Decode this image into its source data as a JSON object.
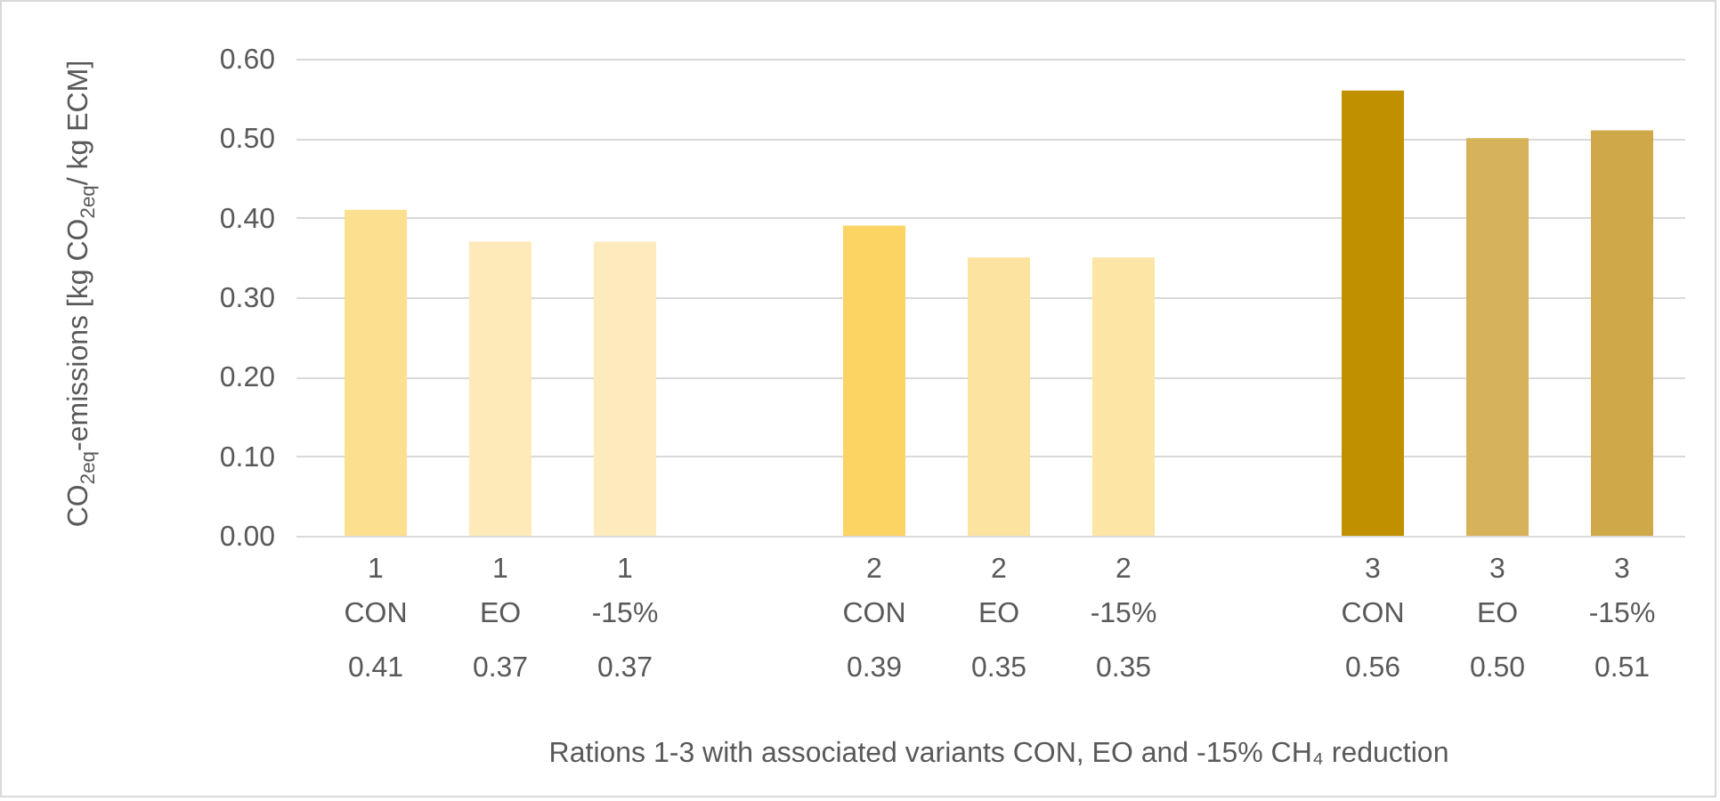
{
  "chart_data": {
    "type": "bar",
    "xlabel": "Rations 1-3 with associated variants CON, EO and -15% CH₄ reduction",
    "ylabel": "CO$_{2eq}$-emissions [kg CO$_{2eq}$/ kg ECM]",
    "categories": [
      "1\nCON",
      "1\nEO",
      "1\n-15%",
      null,
      "2\nCON",
      "2\nEO",
      "2\n-15%",
      null,
      "3\nCON",
      "3\nEO",
      "3\n-15%"
    ],
    "values": [
      0.41,
      0.37,
      0.37,
      null,
      0.39,
      0.35,
      0.35,
      null,
      0.56,
      0.5,
      0.51
    ],
    "colors": [
      "#fde08f",
      "#fdeab8",
      "#fdebbd",
      "#ffffff",
      "#fcd463",
      "#fde3a0",
      "#fde5a6",
      "#ffffff",
      "#c09000",
      "#d6b25a",
      "#cfa84a"
    ],
    "ylim": [
      0,
      0.6
    ],
    "yticks": [
      {
        "value": 0,
        "label": "0.00"
      },
      {
        "value": 0.1,
        "label": "0.10"
      },
      {
        "value": 0.2,
        "label": "0.20"
      },
      {
        "value": 0.3,
        "label": "0.30"
      },
      {
        "value": 0.4,
        "label": "0.40"
      },
      {
        "value": 0.5,
        "label": "0.50"
      },
      {
        "value": 0.6,
        "label": "0.60"
      }
    ],
    "value_labels": [
      "0.41",
      "0.37",
      "0.37",
      null,
      "0.39",
      "0.35",
      "0.35",
      null,
      "0.56",
      "0.50",
      "0.51"
    ],
    "grid": "y"
  }
}
